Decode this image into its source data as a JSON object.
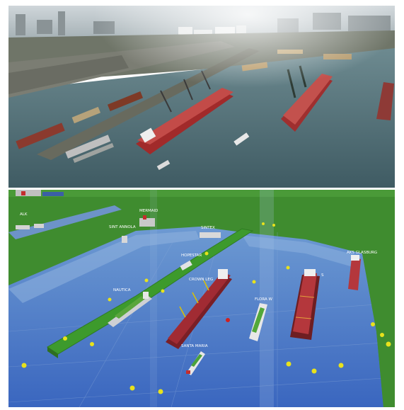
{
  "photo": {
    "description_name": "aerial-harbor-photo"
  },
  "simulation": {
    "vessel_labels": [
      {
        "id": "v1",
        "text": "NAUTICA"
      },
      {
        "id": "v2",
        "text": "CROWN LEG"
      },
      {
        "id": "v3",
        "text": "FLORA W"
      },
      {
        "id": "v4",
        "text": "SANTA MARIA"
      },
      {
        "id": "v5",
        "text": "AKS GLASBURG"
      },
      {
        "id": "v6",
        "text": "SINT ANNOLA"
      },
      {
        "id": "v7",
        "text": "MERMAID"
      },
      {
        "id": "v8",
        "text": "HOPESTAR"
      },
      {
        "id": "v9",
        "text": "SINTEX"
      },
      {
        "id": "v10",
        "text": "ALK"
      },
      {
        "id": "v11",
        "text": "S"
      }
    ]
  },
  "colors": {
    "water_photo": "#4f6d78",
    "grass": "#3e8a2e",
    "water_sim": "#3b6fc4",
    "ship_red": "#b3323a",
    "buoy": "#e8e21c"
  }
}
